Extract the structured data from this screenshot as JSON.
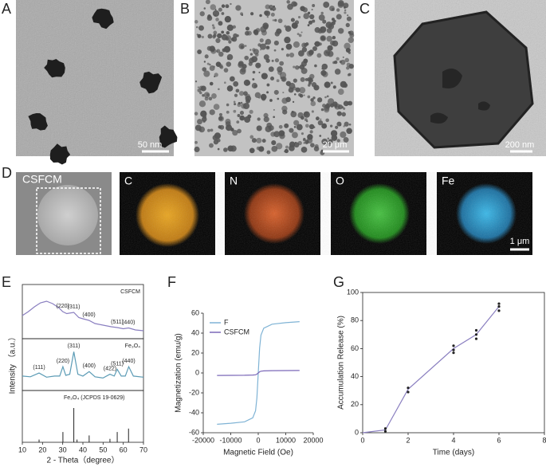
{
  "panel_labels": [
    "A",
    "B",
    "C",
    "D",
    "E",
    "F",
    "G"
  ],
  "scale_bars": [
    "50 nm",
    "20 μm",
    "200 nm",
    "1 μm"
  ],
  "mapping_labels": [
    "CSFCM",
    "C",
    "N",
    "O",
    "Fe"
  ],
  "chart_data": [
    {
      "type": "stacked",
      "xlabel": "2 - Theta（degree）",
      "ylabel": "Intensity （a.u.）",
      "xlim": [
        10,
        70
      ],
      "xticks": [
        10,
        20,
        30,
        40,
        50,
        60,
        70
      ],
      "panels": [
        {
          "name": "CSFCM",
          "color": "#8a7fc0",
          "x": [
            10,
            13,
            16,
            19,
            22,
            25,
            28,
            30,
            32,
            35.5,
            38,
            40,
            43,
            46,
            50,
            54,
            57,
            60,
            62.6,
            66,
            70
          ],
          "values": [
            0.5,
            0.6,
            0.72,
            0.82,
            0.86,
            0.8,
            0.7,
            0.6,
            0.55,
            0.58,
            0.45,
            0.42,
            0.38,
            0.3,
            0.26,
            0.22,
            0.2,
            0.17,
            0.19,
            0.14,
            0.12
          ],
          "annotations": [
            "(220)",
            "(311)",
            "(400)",
            "(511)",
            "(440)"
          ]
        },
        {
          "name": "Fe₃O₄",
          "color": "#5b9bb5",
          "x": [
            10,
            14,
            18.3,
            22,
            26,
            28.5,
            30.1,
            31.5,
            33.5,
            35.5,
            37.5,
            40,
            43.1,
            46,
            50,
            53.4,
            55.5,
            57,
            59,
            61,
            62.7,
            65,
            70
          ],
          "values": [
            0.3,
            0.28,
            0.38,
            0.27,
            0.3,
            0.3,
            0.55,
            0.32,
            0.35,
            0.95,
            0.35,
            0.3,
            0.42,
            0.28,
            0.25,
            0.35,
            0.3,
            0.48,
            0.3,
            0.3,
            0.55,
            0.3,
            0.27
          ],
          "annotations": [
            "(111)",
            "(220)",
            "(311)",
            "(400)",
            "(422)",
            "(511)",
            "(440)"
          ]
        },
        {
          "name": "Fe₃O₄ (JCPDS 19-0629)",
          "color": "#222222",
          "x": [
            18.3,
            30.1,
            35.5,
            37.1,
            43.1,
            53.4,
            57,
            62.6
          ],
          "values": [
            0.08,
            0.3,
            1,
            0.08,
            0.2,
            0.1,
            0.3,
            0.4
          ]
        }
      ]
    },
    {
      "type": "line",
      "xlabel": "Magnetic Field (Oe)",
      "ylabel": "Magnetization (emu/g)",
      "xlim": [
        -20000,
        20000
      ],
      "xticks": [
        -20000,
        -10000,
        0,
        10000,
        20000
      ],
      "ylim": [
        -60,
        60
      ],
      "yticks": [
        -60,
        -40,
        -20,
        0,
        20,
        40,
        60
      ],
      "x": [
        -15000,
        -10000,
        -5000,
        -2000,
        -1000,
        -500,
        0,
        500,
        1000,
        2000,
        5000,
        10000,
        15000
      ],
      "series": [
        {
          "name": "F",
          "color": "#7fb3d5",
          "values": [
            -51.5,
            -50.5,
            -49,
            -45,
            -38,
            -25,
            0,
            25,
            38,
            45,
            49,
            50.5,
            51.5
          ]
        },
        {
          "name": "CSFCM",
          "color": "#7b68b8",
          "values": [
            -2.5,
            -2.4,
            -2.3,
            -2.1,
            -1.8,
            -1.2,
            0,
            1.2,
            1.8,
            2.1,
            2.3,
            2.4,
            2.5
          ]
        }
      ]
    },
    {
      "type": "line",
      "xlabel": "Time (days)",
      "ylabel": "Accumulation Release (%)",
      "xlim": [
        0,
        8
      ],
      "xticks": [
        0,
        2,
        4,
        6,
        8
      ],
      "ylim": [
        0,
        100
      ],
      "yticks": [
        0,
        20,
        40,
        60,
        80,
        100
      ],
      "x": [
        0,
        1,
        2,
        4,
        5,
        6
      ],
      "series": [
        {
          "color": "#8a7fc0",
          "values": [
            0,
            2,
            31,
            60,
            70,
            90
          ]
        }
      ],
      "points": {
        "color": "#222222",
        "x": [
          1,
          1,
          2,
          2,
          4,
          4,
          4,
          5,
          5,
          5,
          6,
          6,
          6
        ],
        "y": [
          1,
          3,
          29,
          32,
          57,
          59,
          62,
          67,
          70,
          73,
          87,
          90,
          92
        ]
      }
    }
  ]
}
